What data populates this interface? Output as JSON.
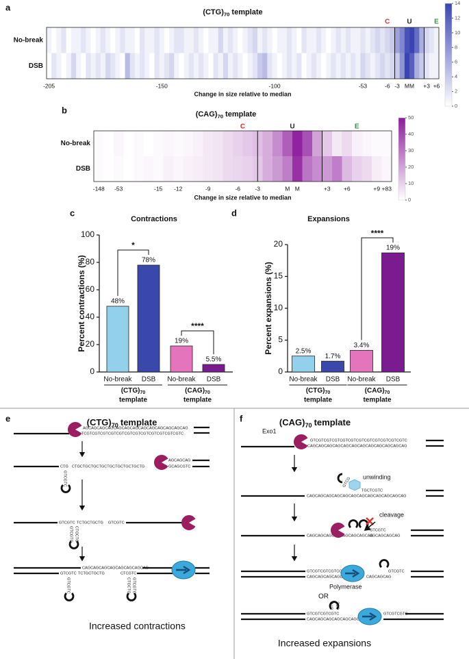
{
  "chart_data": [
    {
      "type": "heatmap",
      "panel": "a",
      "title": "(CTG)",
      "title_sub": "70",
      "title_end": "template",
      "xlabel": "Change in size relative to median",
      "categories": [
        "-205",
        null,
        null,
        null,
        null,
        null,
        null,
        null,
        null,
        null,
        null,
        null,
        null,
        null,
        null,
        null,
        null,
        null,
        null,
        null,
        null,
        null,
        null,
        "-150",
        null,
        null,
        null,
        null,
        null,
        null,
        null,
        null,
        null,
        null,
        null,
        null,
        null,
        null,
        null,
        null,
        null,
        null,
        null,
        null,
        null,
        null,
        "-100",
        null,
        null,
        null,
        null,
        null,
        null,
        null,
        null,
        null,
        null,
        null,
        null,
        null,
        null,
        null,
        null,
        null,
        "-53",
        null,
        null,
        null,
        null,
        "-6",
        null,
        "-3",
        null,
        "M",
        "M",
        null,
        null,
        "+3",
        null,
        "+6"
      ],
      "series": [
        {
          "name": "No-break",
          "values": [
            1,
            0,
            1,
            2,
            0,
            1,
            1,
            2,
            1,
            0,
            1,
            2,
            1,
            0,
            1,
            2,
            1,
            1,
            0,
            2,
            1,
            1,
            2,
            1,
            0,
            1,
            2,
            2,
            1,
            1,
            2,
            1,
            0,
            1,
            1,
            3,
            1,
            2,
            1,
            0,
            1,
            2,
            3,
            1,
            2,
            1,
            0,
            1,
            1,
            2,
            1,
            0,
            2,
            1,
            1,
            2,
            1,
            0,
            1,
            2,
            1,
            2,
            1,
            1,
            2,
            1,
            2,
            3,
            2,
            3,
            4,
            7,
            9,
            13,
            14,
            11,
            6,
            3,
            2,
            1
          ]
        },
        {
          "name": "DSB",
          "values": [
            0,
            2,
            1,
            0,
            1,
            3,
            1,
            0,
            2,
            1,
            2,
            1,
            3,
            2,
            1,
            0,
            5,
            2,
            1,
            2,
            1,
            0,
            2,
            1,
            2,
            3,
            1,
            0,
            1,
            2,
            1,
            2,
            1,
            0,
            2,
            1,
            3,
            1,
            2,
            1,
            0,
            1,
            2,
            4,
            5,
            2,
            1,
            0,
            1,
            2,
            1,
            2,
            0,
            1,
            2,
            1,
            0,
            1,
            2,
            1,
            2,
            1,
            2,
            1,
            3,
            2,
            1,
            2,
            3,
            2,
            3,
            4,
            8,
            14,
            12,
            6,
            4,
            2,
            1,
            1
          ]
        }
      ],
      "colormap": [
        "#ffffff",
        "#3b45b2"
      ],
      "clim": [
        0,
        14
      ],
      "cticks": [
        0,
        2,
        4,
        6,
        8,
        10,
        12,
        14
      ],
      "regions": [
        {
          "label": "C",
          "color": "#e0322b"
        },
        {
          "label": "U",
          "color": "#222222"
        },
        {
          "label": "E",
          "color": "#2e9a45"
        }
      ]
    },
    {
      "type": "heatmap",
      "panel": "b",
      "title": "(CAG)",
      "title_sub": "70",
      "title_end": "template",
      "xlabel": "Change in size relative to median",
      "categories": [
        "-148",
        null,
        "-53",
        null,
        null,
        null,
        "-15",
        null,
        "-12",
        null,
        null,
        "-9",
        null,
        null,
        "-6",
        null,
        "-3",
        null,
        null,
        "M",
        "M",
        null,
        null,
        "+3",
        null,
        "+6",
        null,
        null,
        "+9",
        "+83"
      ],
      "series": [
        {
          "name": "No-break",
          "values": [
            1,
            0,
            2,
            0,
            1,
            0,
            1,
            2,
            1,
            2,
            3,
            5,
            6,
            8,
            10,
            12,
            14,
            18,
            25,
            35,
            48,
            38,
            20,
            12,
            5,
            8,
            3,
            2,
            1,
            1
          ]
        },
        {
          "name": "DSB",
          "values": [
            1,
            0,
            1,
            0,
            1,
            2,
            1,
            3,
            2,
            3,
            4,
            5,
            6,
            8,
            9,
            10,
            12,
            18,
            22,
            28,
            45,
            30,
            25,
            22,
            28,
            15,
            10,
            8,
            4,
            2
          ]
        }
      ],
      "colormap": [
        "#ffffff",
        "#8c1a9c"
      ],
      "clim": [
        0,
        50
      ],
      "cticks": [
        0,
        10,
        20,
        30,
        40,
        50
      ],
      "regions": [
        {
          "label": "C",
          "color": "#e0322b"
        },
        {
          "label": "U",
          "color": "#222222"
        },
        {
          "label": "E",
          "color": "#2e9a45"
        }
      ]
    },
    {
      "type": "bar",
      "panel": "c",
      "title": "Contractions",
      "ylabel": "Percent contractions (%)",
      "categories": [
        "No-break",
        "DSB",
        "No-break",
        "DSB"
      ],
      "values": [
        48,
        78,
        19,
        5.5
      ],
      "value_labels": [
        "48%",
        "78%",
        "19%",
        "5.5%"
      ],
      "colors": [
        "#93d0ec",
        "#3a48ac",
        "#e474bb",
        "#7a1b8f"
      ],
      "ylim": [
        0,
        100
      ],
      "yticks": [
        0,
        20,
        40,
        60,
        80,
        100
      ],
      "groups": [
        {
          "name": "(CTG)",
          "sub": "70",
          "end": "template"
        },
        {
          "name": "(CAG)",
          "sub": "70",
          "end": "template"
        }
      ],
      "significance": [
        {
          "pair": [
            0,
            1
          ],
          "text": "*"
        },
        {
          "pair": [
            2,
            3
          ],
          "text": "****"
        }
      ]
    },
    {
      "type": "bar",
      "panel": "d",
      "title": "Expansions",
      "ylabel": "Percent expansions (%)",
      "categories": [
        "No-break",
        "DSB",
        "No-break",
        "DSB"
      ],
      "values": [
        2.5,
        1.7,
        3.4,
        18.7
      ],
      "value_labels": [
        "2.5%",
        "1.7%",
        "3.4%",
        "19%"
      ],
      "colors": [
        "#93d0ec",
        "#3a48ac",
        "#e474bb",
        "#7a1b8f"
      ],
      "ylim": [
        0,
        20
      ],
      "yticks": [
        0,
        5,
        10,
        15,
        20
      ],
      "groups": [
        {
          "name": "(CTG)",
          "sub": "70",
          "end": "template"
        },
        {
          "name": "(CAG)",
          "sub": "70",
          "end": "template"
        }
      ],
      "significance": [
        {
          "pair": [
            2,
            3
          ],
          "text": "****"
        }
      ]
    }
  ],
  "panel_e": {
    "label": "e",
    "title": "(CTG)",
    "title_sub": "70",
    "title_end": "template",
    "sequences": [
      "AGCAGCAGCAGCAGCAGCAGCAGCAGCAGCAGCAGCAG",
      "TCGTCGTCGTCGTCGTCGTCGTCGTCGTCGTCGTCGTC",
      "CTG",
      "CTGCTGCTGCTGCTGCTGCTGCTGCTG",
      "AGCAGCAG",
      "GCAGCGTC",
      "GTCGTC",
      "GTCGTC",
      "TCTGCTGCTG",
      "GTCGTC",
      "GTCGTC",
      "CTGCTG",
      "CAGCAGCAGCAGCAGCAGCAGCAG",
      "GTCGTC",
      "TCTGCTGCTG",
      "CTCGTC",
      "GTCGTC",
      "CTGCTG",
      "GTCGTC"
    ],
    "caption": "Increased contractions"
  },
  "panel_f": {
    "label": "f",
    "title": "(CAG)",
    "title_sub": "70",
    "title_end": "template",
    "labels": {
      "exo": "Exo1",
      "unwinding": "unwinding",
      "cleavage": "cleavage",
      "polymerase": "Polymerase",
      "or": "OR"
    },
    "sequences": [
      "GTCGTCGTCGTCGTCGTCGTCGTCGTCGTCGTCGTC",
      "CAGCAGCAGCAGCAGCAGCAGCAGCAGCAGCAGCAG",
      "TGCTCGTC",
      "CAGCAGCAGCAGCAGCAGCAGCAGCAGCAGCAGCAG",
      "GTCG",
      "CAGCAGCAGCAGCAGCAGCAGCAG",
      "AGCAGCAGCAG",
      "GTCGTC",
      "GTCGTCGTCGTCGTCG",
      "CAGCAGCAGCAGCAGCA",
      "GTCGTC",
      "CAGCAGCAG",
      "GTCGTCGTCGTC",
      "CAGCAGCAGCAGCAGCAGCAG",
      "GTCGTCGTC",
      "CTG",
      "GTC"
    ],
    "caption": "Increased expansions"
  }
}
